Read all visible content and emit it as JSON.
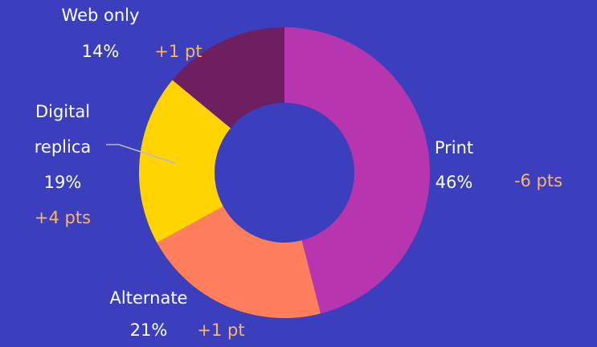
{
  "chart_data": {
    "type": "donut",
    "categories": [
      "Print",
      "Alternate",
      "Digital replica",
      "Web only"
    ],
    "values": [
      46,
      21,
      19,
      14
    ],
    "value_labels": [
      "46%",
      "21%",
      "19%",
      "14%"
    ],
    "annotations": [
      "-6 pts",
      "+1 pt",
      "+4 pts",
      "+1 pt"
    ],
    "colors": [
      "#b735ae",
      "#ff7f5c",
      "#ffd400",
      "#6d1f5f"
    ]
  }
}
